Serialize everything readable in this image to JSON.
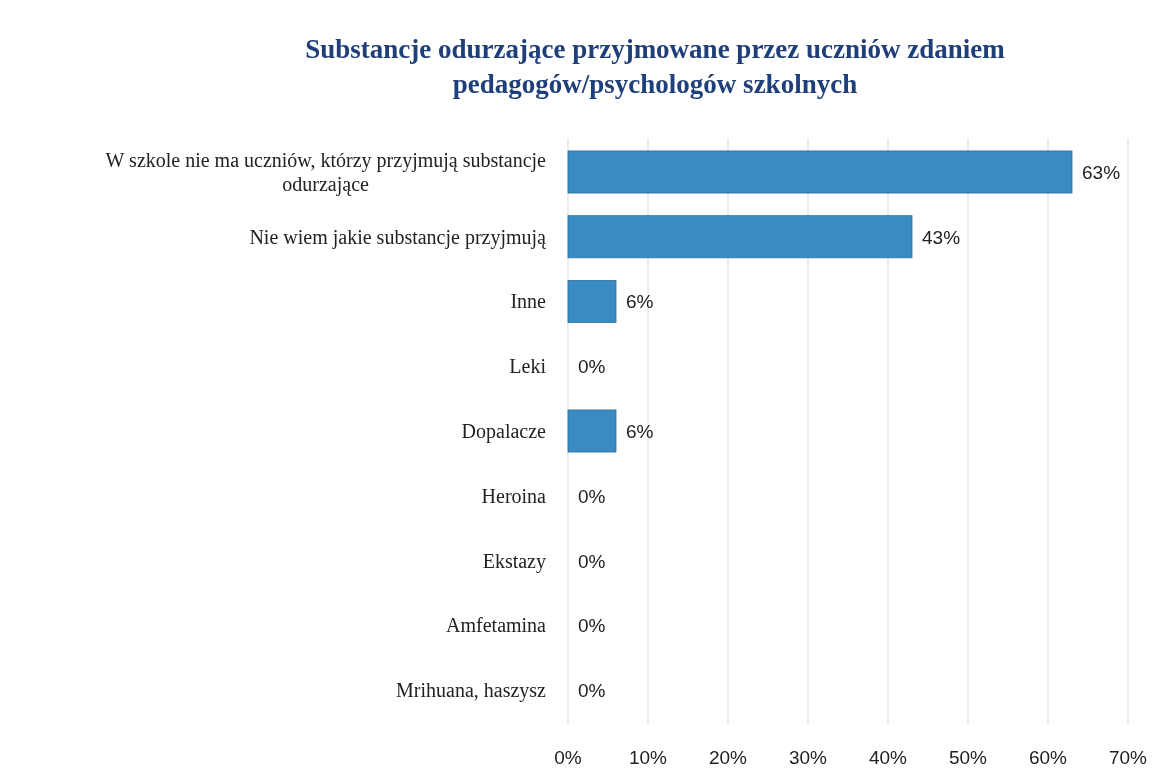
{
  "chart_data": {
    "type": "bar",
    "orientation": "horizontal",
    "title": "Substancje odurzające przyjmowane przez uczniów zdaniem pedagogów/psychologów szkolnych",
    "categories": [
      "W szkole nie ma uczniów, którzy przyjmują substancje odurzające",
      "Nie wiem jakie substancje przyjmują",
      "Inne",
      "Leki",
      "Dopalacze",
      "Heroina",
      "Ekstazy",
      "Amfetamina",
      "Mrihuana, haszysz"
    ],
    "values": [
      63,
      43,
      6,
      0,
      6,
      0,
      0,
      0,
      0
    ],
    "value_labels": [
      "63%",
      "43%",
      "6%",
      "0%",
      "6%",
      "0%",
      "0%",
      "0%",
      "0%"
    ],
    "color": "#3a8bc2",
    "xlim": [
      0,
      70
    ],
    "xticks": [
      {
        "value": 0,
        "label": "0%"
      },
      {
        "value": 10,
        "label": "10%"
      },
      {
        "value": 20,
        "label": "20%"
      },
      {
        "value": 30,
        "label": "30%"
      },
      {
        "value": 40,
        "label": "40%"
      },
      {
        "value": 50,
        "label": "50%"
      },
      {
        "value": 60,
        "label": "60%"
      },
      {
        "value": 70,
        "label": "70%"
      }
    ],
    "grid": "x"
  }
}
